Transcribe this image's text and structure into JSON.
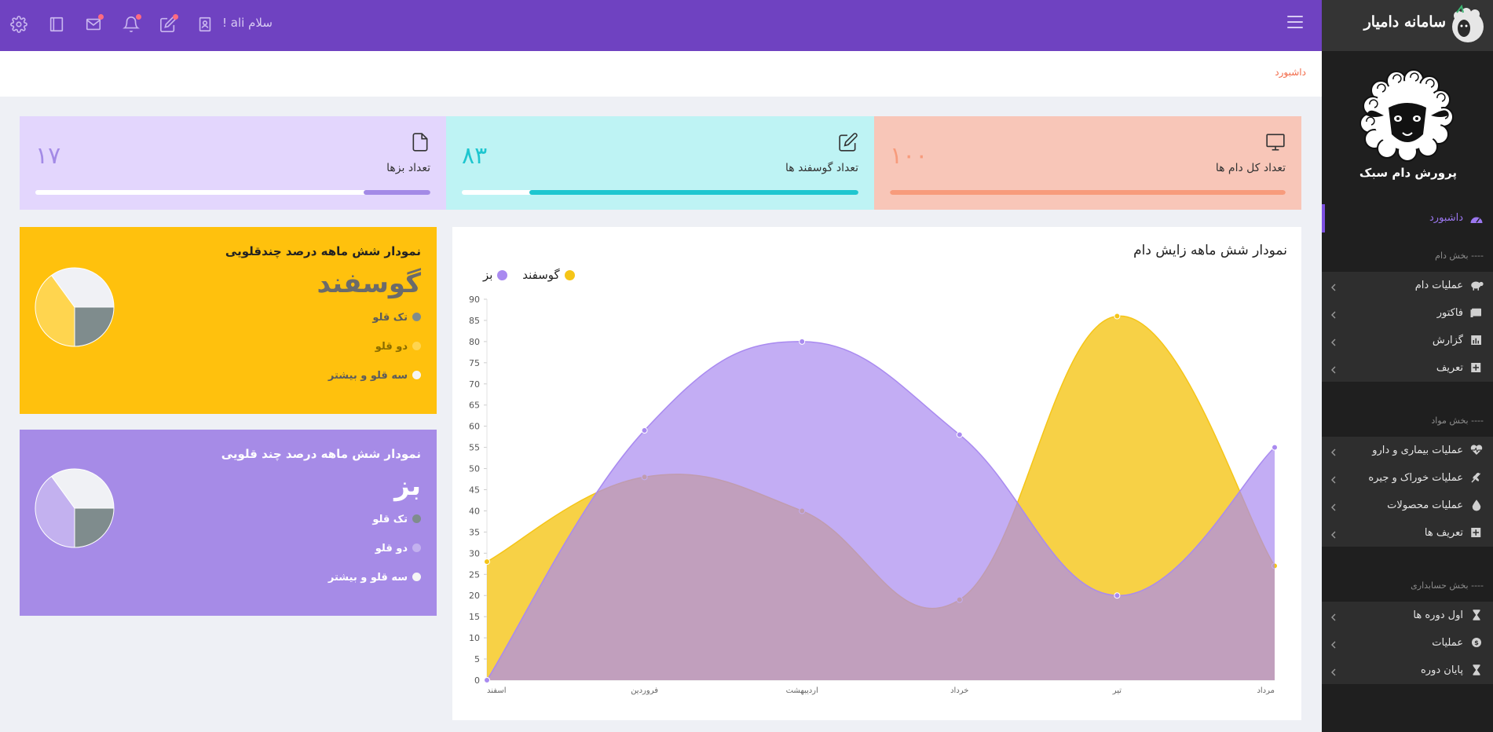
{
  "topbar": {
    "greeting": "سلام ali !",
    "icons": [
      "settings-icon",
      "book-icon",
      "mail-icon",
      "bell-icon",
      "edit-icon",
      "profile-icon",
      "menu-icon"
    ]
  },
  "breadcrumb": {
    "current": "داشبورد"
  },
  "sidebar": {
    "brand": "سامانه دامیار",
    "logo_text": "پرورش دام سبک",
    "active_item": "داشبورد",
    "sections": [
      {
        "title": "---- بخش دام",
        "items": [
          {
            "label": "عملیات دام",
            "icon": "sheep-icon"
          },
          {
            "label": "فاکتور",
            "icon": "invoice-icon"
          },
          {
            "label": "گزارش",
            "icon": "chart-icon"
          },
          {
            "label": "تعریف",
            "icon": "plus-icon"
          }
        ]
      },
      {
        "title": "---- بخش مواد",
        "items": [
          {
            "label": "عملیات بیماری و دارو",
            "icon": "heartbeat-icon"
          },
          {
            "label": "عملیات خوراک و جیره",
            "icon": "wheat-icon"
          },
          {
            "label": "عملیات محصولات",
            "icon": "drop-icon"
          },
          {
            "label": "تعریف ها",
            "icon": "plus-icon"
          }
        ]
      },
      {
        "title": "---- بخش حسابداری",
        "items": [
          {
            "label": "اول دوره ها",
            "icon": "hourglass-icon"
          },
          {
            "label": "عملیات",
            "icon": "money-icon"
          },
          {
            "label": "پایان دوره",
            "icon": "hourglass-icon"
          }
        ]
      }
    ]
  },
  "stats": [
    {
      "title": "تعداد کل دام ها",
      "value": "۱۰۰",
      "progress": 1.0,
      "color": "#f79b7c",
      "bg": "#f8c6b8",
      "icon": "monitor-icon"
    },
    {
      "title": "تعداد گوسفند ها",
      "value": "۸۳",
      "progress": 0.83,
      "color": "#1ec6cf",
      "bg": "#bef3f4",
      "icon": "edit-icon"
    },
    {
      "title": "تعداد بزها",
      "value": "۱۷",
      "progress": 0.17,
      "color": "#a38ae6",
      "bg": "#e3d6fd",
      "icon": "file-icon"
    }
  ],
  "sheep_card": {
    "title": "نمودار شش ماهه درصد چندقلویی",
    "animal": "گوسفند",
    "bg": "#ffc10d",
    "legend": [
      {
        "label": "تک قلو",
        "color": "#7f8c8d"
      },
      {
        "label": "دو قلو",
        "color": "#ffd54f"
      },
      {
        "label": "سه قلو و بیشتر",
        "color": "#f5f5f5"
      }
    ]
  },
  "goat_card": {
    "title": "نمودار شش ماهه درصد چند قلویی",
    "animal": "بز",
    "bg": "#a68be7",
    "legend": [
      {
        "label": "تک قلو",
        "color": "#7f8c8d"
      },
      {
        "label": "دو قلو",
        "color": "#c3b1ef"
      },
      {
        "label": "سه قلو و بیشتر",
        "color": "#f5f5f5"
      }
    ]
  },
  "chart_data": [
    {
      "type": "area",
      "title": "نمودار شش ماهه زایش دام",
      "categories": [
        "اسفند",
        "فروردین",
        "اردیبهشت",
        "خرداد",
        "تیر",
        "مرداد"
      ],
      "ylim": [
        0,
        90
      ],
      "yticks": [
        0,
        5,
        10,
        15,
        20,
        25,
        30,
        35,
        40,
        45,
        50,
        55,
        60,
        65,
        70,
        75,
        80,
        85,
        90
      ],
      "legend_position": "top-left",
      "series": [
        {
          "name": "گوسفند",
          "values": [
            28,
            48,
            40,
            19,
            86,
            27
          ],
          "color": "#f5c518"
        },
        {
          "name": "بز",
          "values": [
            0,
            59,
            80,
            58,
            20,
            55
          ],
          "color": "#a98af0"
        }
      ]
    },
    {
      "type": "pie",
      "animal": "گوسفند",
      "values": [
        25,
        40,
        35
      ],
      "colors": [
        "#7f8c8d",
        "#ffd54f",
        "#f0f1f5"
      ]
    },
    {
      "type": "pie",
      "animal": "بز",
      "values": [
        25,
        40,
        35
      ],
      "colors": [
        "#7f8c8d",
        "#c3b1ef",
        "#f0f1f5"
      ]
    }
  ]
}
